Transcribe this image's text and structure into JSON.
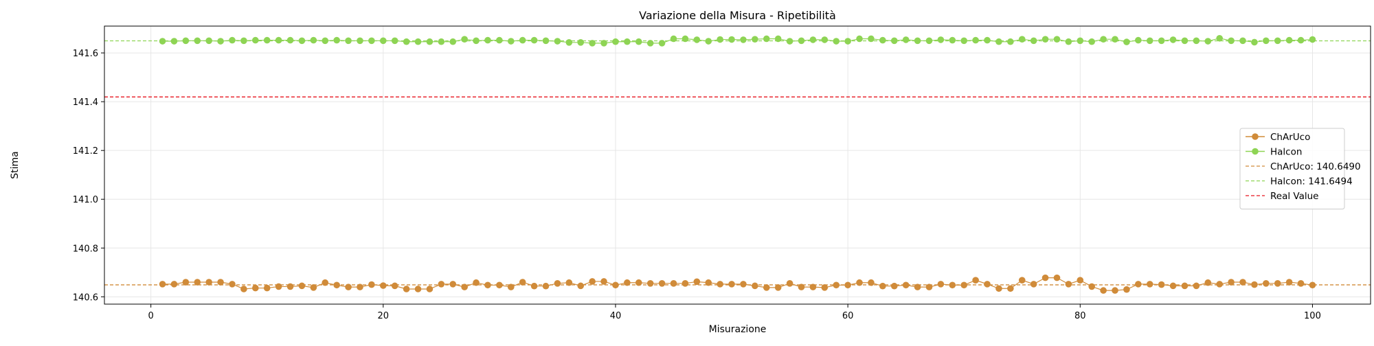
{
  "chart_data": {
    "type": "line",
    "title": "Variazione della Misura - Ripetibilità",
    "xlabel": "Misurazione",
    "ylabel": "Stima",
    "xlim": [
      -4,
      105
    ],
    "ylim": [
      140.57,
      141.71
    ],
    "xticks": [
      0,
      20,
      40,
      60,
      80,
      100
    ],
    "xtick_labels": [
      "0",
      "20",
      "40",
      "60",
      "80",
      "100"
    ],
    "yticks": [
      140.6,
      140.8,
      141.0,
      141.2,
      141.4,
      141.6
    ],
    "ytick_labels": [
      "140.6",
      "140.8",
      "141.0",
      "141.2",
      "141.4",
      "141.6"
    ],
    "grid": true,
    "legend_position": "center-right",
    "series": [
      {
        "name": "ChArUco",
        "color": "#d08b39",
        "marker": "circle",
        "x": [
          1,
          2,
          3,
          4,
          5,
          6,
          7,
          8,
          9,
          10,
          11,
          12,
          13,
          14,
          15,
          16,
          17,
          18,
          19,
          20,
          21,
          22,
          23,
          24,
          25,
          26,
          27,
          28,
          29,
          30,
          31,
          32,
          33,
          34,
          35,
          36,
          37,
          38,
          39,
          40,
          41,
          42,
          43,
          44,
          45,
          46,
          47,
          48,
          49,
          50,
          51,
          52,
          53,
          54,
          55,
          56,
          57,
          58,
          59,
          60,
          61,
          62,
          63,
          64,
          65,
          66,
          67,
          68,
          69,
          70,
          71,
          72,
          73,
          74,
          75,
          76,
          77,
          78,
          79,
          80,
          81,
          82,
          83,
          84,
          85,
          86,
          87,
          88,
          89,
          90,
          91,
          92,
          93,
          94,
          95,
          96,
          97,
          98,
          99,
          100
        ],
        "values": [
          140.652,
          140.652,
          140.66,
          140.66,
          140.66,
          140.66,
          140.652,
          140.632,
          140.636,
          140.636,
          140.642,
          140.642,
          140.645,
          140.638,
          140.658,
          140.648,
          140.64,
          140.64,
          140.65,
          140.646,
          140.645,
          140.632,
          140.632,
          140.632,
          140.652,
          140.652,
          140.64,
          140.658,
          140.648,
          140.648,
          140.64,
          140.66,
          140.644,
          140.644,
          140.655,
          140.658,
          140.645,
          140.663,
          140.663,
          140.648,
          140.658,
          140.658,
          140.655,
          140.655,
          140.655,
          140.655,
          140.662,
          140.658,
          140.652,
          140.652,
          140.652,
          140.645,
          140.638,
          140.638,
          140.655,
          140.64,
          140.64,
          140.638,
          140.648,
          140.648,
          140.658,
          140.658,
          140.644,
          140.644,
          140.648,
          140.64,
          140.64,
          140.652,
          140.648,
          140.648,
          140.668,
          140.652,
          140.634,
          140.634,
          140.668,
          140.652,
          140.678,
          140.678,
          140.652,
          140.668,
          140.642,
          140.626,
          140.626,
          140.63,
          140.652,
          140.652,
          140.65,
          140.645,
          140.645,
          140.645,
          140.658,
          140.652,
          140.66,
          140.66,
          140.65,
          140.655,
          140.655,
          140.66,
          140.655,
          140.648
        ]
      },
      {
        "name": "Halcon",
        "color": "#8ed454",
        "marker": "circle",
        "x": [
          1,
          2,
          3,
          4,
          5,
          6,
          7,
          8,
          9,
          10,
          11,
          12,
          13,
          14,
          15,
          16,
          17,
          18,
          19,
          20,
          21,
          22,
          23,
          24,
          25,
          26,
          27,
          28,
          29,
          30,
          31,
          32,
          33,
          34,
          35,
          36,
          37,
          38,
          39,
          40,
          41,
          42,
          43,
          44,
          45,
          46,
          47,
          48,
          49,
          50,
          51,
          52,
          53,
          54,
          55,
          56,
          57,
          58,
          59,
          60,
          61,
          62,
          63,
          64,
          65,
          66,
          67,
          68,
          69,
          70,
          71,
          72,
          73,
          74,
          75,
          76,
          77,
          78,
          79,
          80,
          81,
          82,
          83,
          84,
          85,
          86,
          87,
          88,
          89,
          90,
          91,
          92,
          93,
          94,
          95,
          96,
          97,
          98,
          99,
          100
        ],
        "values": [
          141.648,
          141.648,
          141.65,
          141.65,
          141.65,
          141.648,
          141.652,
          141.65,
          141.652,
          141.652,
          141.652,
          141.652,
          141.65,
          141.652,
          141.65,
          141.652,
          141.65,
          141.65,
          141.65,
          141.65,
          141.65,
          141.646,
          141.646,
          141.646,
          141.646,
          141.646,
          141.656,
          141.65,
          141.652,
          141.652,
          141.648,
          141.652,
          141.652,
          141.65,
          141.648,
          141.643,
          141.643,
          141.64,
          141.64,
          141.646,
          141.646,
          141.646,
          141.64,
          141.64,
          141.658,
          141.658,
          141.654,
          141.648,
          141.655,
          141.655,
          141.654,
          141.656,
          141.658,
          141.658,
          141.648,
          141.65,
          141.654,
          141.654,
          141.648,
          141.648,
          141.658,
          141.658,
          141.652,
          141.65,
          141.654,
          141.65,
          141.65,
          141.654,
          141.652,
          141.65,
          141.652,
          141.652,
          141.646,
          141.646,
          141.656,
          141.65,
          141.656,
          141.656,
          141.646,
          141.65,
          141.646,
          141.656,
          141.656,
          141.645,
          141.652,
          141.65,
          141.65,
          141.654,
          141.65,
          141.65,
          141.648,
          141.66,
          141.65,
          141.65,
          141.644,
          141.65,
          141.65,
          141.652,
          141.652,
          141.655
        ]
      }
    ],
    "reference_lines": [
      {
        "label": "ChArUco: 140.6490",
        "value": 140.649,
        "color": "#d08b39",
        "style": "dashed"
      },
      {
        "label": "Halcon: 141.6494",
        "value": 141.6494,
        "color": "#8ed454",
        "style": "dashed"
      },
      {
        "label": "Real Value",
        "value": 141.4195,
        "color": "#e8141e",
        "style": "dashed"
      }
    ]
  }
}
